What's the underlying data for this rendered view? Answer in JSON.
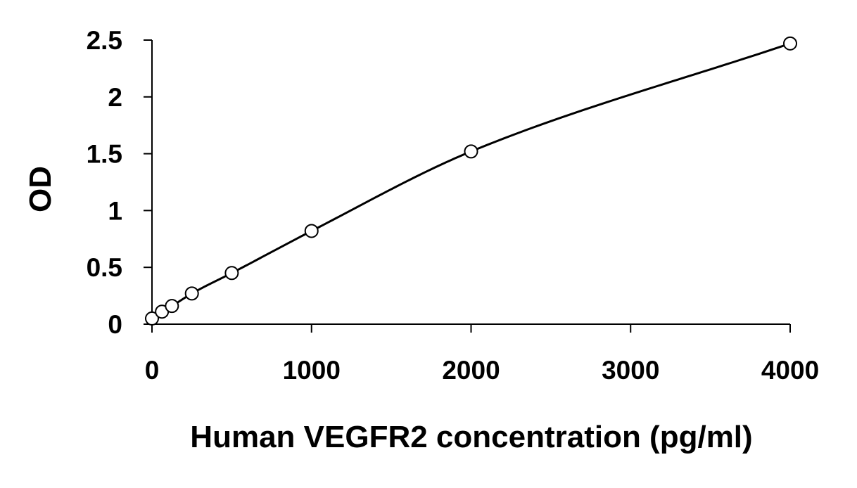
{
  "chart_data": {
    "type": "scatter",
    "title": "",
    "xlabel": "Human VEGFR2 concentration (pg/ml)",
    "ylabel": "OD",
    "xlim": [
      0,
      4000
    ],
    "ylim": [
      0,
      2.5
    ],
    "xticks": [
      0,
      1000,
      2000,
      3000,
      4000
    ],
    "xtick_labels": [
      "0",
      "1000",
      "2000",
      "3000",
      "4000"
    ],
    "yticks": [
      0,
      0.5,
      1,
      1.5,
      2,
      2.5
    ],
    "ytick_labels": [
      "0",
      "0.5",
      "1",
      "1.5",
      "2",
      "2.5"
    ],
    "grid": false,
    "legend": "none",
    "marker": "open-circle",
    "trendline": "fitted-curve",
    "colors": {
      "line": "#000000",
      "marker_stroke": "#000000",
      "marker_fill": "#ffffff"
    },
    "series": [
      {
        "x": [
          0,
          62.5,
          125,
          250,
          500,
          1000,
          2000,
          4000
        ],
        "y": [
          0.05,
          0.11,
          0.16,
          0.27,
          0.45,
          0.82,
          1.52,
          2.47
        ]
      }
    ]
  }
}
